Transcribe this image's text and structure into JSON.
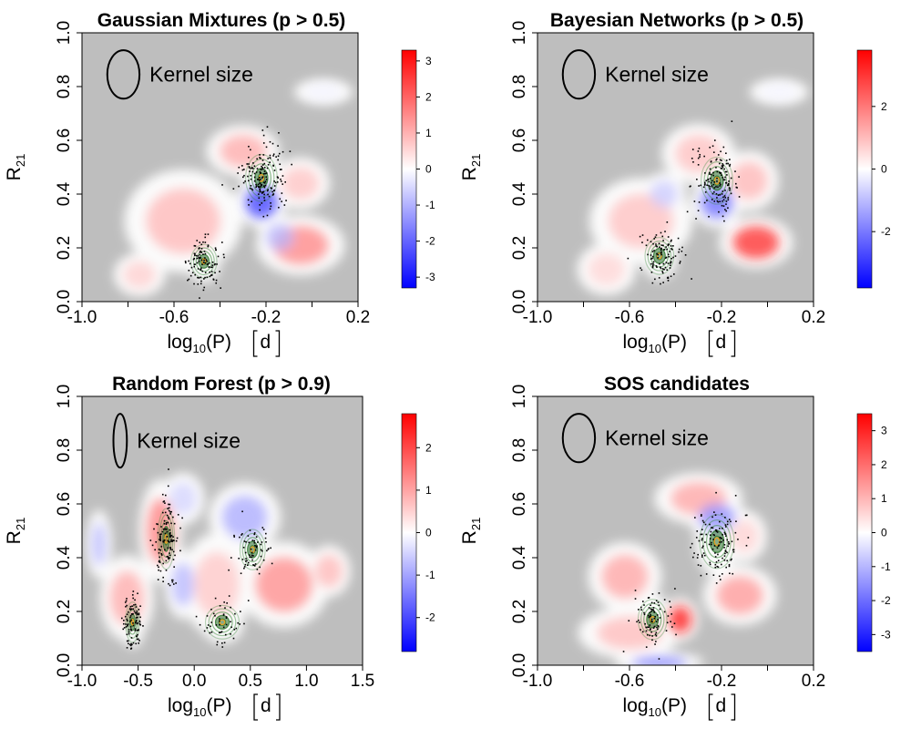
{
  "figure_title": "Density-difference maps in the log10(P) vs R21 plane",
  "chart_data": [
    {
      "type": "heatmap",
      "title": "Gaussian Mixtures (p > 0.5)",
      "xlabel": {
        "main": "log",
        "sub": "10",
        "rest": "(P)",
        "unit": "d"
      },
      "ylabel": {
        "main": "R",
        "sub": "21"
      },
      "xlim": [
        -1.0,
        0.2
      ],
      "ylim": [
        0.0,
        1.0
      ],
      "xticks": [
        -1.0,
        -0.6,
        -0.2,
        0.2
      ],
      "xtick_labels": [
        "-1.0",
        "-0.6",
        "-0.2",
        "0.2"
      ],
      "xminor": [
        -0.8,
        -0.4,
        0.0
      ],
      "yticks": [
        0.0,
        0.2,
        0.4,
        0.6,
        0.8,
        1.0
      ],
      "ytick_labels": [
        "0.0",
        "0.2",
        "0.4",
        "0.6",
        "0.8",
        "1.0"
      ],
      "colorbar_range": [
        -3.3,
        3.3
      ],
      "colorbar_ticks": [
        -3,
        -2,
        -1,
        0,
        1,
        2,
        3
      ],
      "colorbar_tick_labels": [
        "-3",
        "-2",
        "-1",
        "0",
        "1",
        "2",
        "3"
      ],
      "kernel_label": "Kernel size",
      "kernel": {
        "center": [
          -0.82,
          0.845
        ],
        "rx": 0.07,
        "ry": 0.09
      },
      "clusters": [
        {
          "x": -0.22,
          "y": 0.46,
          "sx": 0.055,
          "sy": 0.07,
          "points": 170
        },
        {
          "x": -0.47,
          "y": 0.15,
          "sx": 0.045,
          "sy": 0.05,
          "points": 110
        }
      ],
      "blobs": [
        {
          "x": -0.56,
          "y": 0.3,
          "sx": 0.16,
          "sy": 0.12,
          "v": 0.6
        },
        {
          "x": -0.05,
          "y": 0.21,
          "sx": 0.12,
          "sy": 0.07,
          "v": 1.0
        },
        {
          "x": -0.3,
          "y": 0.56,
          "sx": 0.1,
          "sy": 0.06,
          "v": 0.7
        },
        {
          "x": -0.22,
          "y": 0.37,
          "sx": 0.07,
          "sy": 0.06,
          "v": -1.6
        },
        {
          "x": -0.14,
          "y": 0.24,
          "sx": 0.06,
          "sy": 0.05,
          "v": -0.6
        },
        {
          "x": -0.05,
          "y": 0.44,
          "sx": 0.08,
          "sy": 0.06,
          "v": 0.5
        },
        {
          "x": 0.05,
          "y": 0.78,
          "sx": 0.08,
          "sy": 0.03,
          "v": -0.1
        },
        {
          "x": -0.75,
          "y": 0.1,
          "sx": 0.07,
          "sy": 0.05,
          "v": 0.4
        }
      ]
    },
    {
      "type": "heatmap",
      "title": "Bayesian Networks (p > 0.5)",
      "xlabel": {
        "main": "log",
        "sub": "10",
        "rest": "(P)",
        "unit": "d"
      },
      "ylabel": {
        "main": "R",
        "sub": "21"
      },
      "xlim": [
        -1.0,
        0.2
      ],
      "ylim": [
        0.0,
        1.0
      ],
      "xticks": [
        -1.0,
        -0.6,
        -0.2,
        0.2
      ],
      "xtick_labels": [
        "-1.0",
        "-0.6",
        "-0.2",
        "0.2"
      ],
      "xminor": [
        -0.8,
        -0.4,
        0.0
      ],
      "yticks": [
        0.0,
        0.2,
        0.4,
        0.6,
        0.8,
        1.0
      ],
      "ytick_labels": [
        "0.0",
        "0.2",
        "0.4",
        "0.6",
        "0.8",
        "1.0"
      ],
      "colorbar_range": [
        -3.8,
        3.8
      ],
      "colorbar_ticks": [
        -2,
        0,
        2
      ],
      "colorbar_tick_labels": [
        "-2",
        "0",
        "2"
      ],
      "kernel_label": "Kernel size",
      "kernel": {
        "center": [
          -0.82,
          0.845
        ],
        "rx": 0.07,
        "ry": 0.09
      },
      "clusters": [
        {
          "x": -0.22,
          "y": 0.45,
          "sx": 0.055,
          "sy": 0.07,
          "points": 150
        },
        {
          "x": -0.47,
          "y": 0.17,
          "sx": 0.05,
          "sy": 0.055,
          "points": 110
        }
      ],
      "blobs": [
        {
          "x": -0.05,
          "y": 0.22,
          "sx": 0.1,
          "sy": 0.06,
          "v": 2.0
        },
        {
          "x": -0.55,
          "y": 0.3,
          "sx": 0.14,
          "sy": 0.1,
          "v": 0.6
        },
        {
          "x": -0.3,
          "y": 0.55,
          "sx": 0.1,
          "sy": 0.07,
          "v": 0.6
        },
        {
          "x": -0.22,
          "y": 0.37,
          "sx": 0.07,
          "sy": 0.06,
          "v": -1.4
        },
        {
          "x": -0.08,
          "y": 0.45,
          "sx": 0.08,
          "sy": 0.07,
          "v": 0.7
        },
        {
          "x": -0.45,
          "y": 0.4,
          "sx": 0.06,
          "sy": 0.05,
          "v": -0.5
        },
        {
          "x": -0.7,
          "y": 0.12,
          "sx": 0.08,
          "sy": 0.06,
          "v": 0.4
        },
        {
          "x": 0.05,
          "y": 0.78,
          "sx": 0.08,
          "sy": 0.03,
          "v": -0.1
        }
      ]
    },
    {
      "type": "heatmap",
      "title": "Random Forest (p > 0.9)",
      "xlabel": {
        "main": "log",
        "sub": "10",
        "rest": "(P)",
        "unit": "d"
      },
      "ylabel": {
        "main": "R",
        "sub": "21"
      },
      "xlim": [
        -1.0,
        1.5
      ],
      "ylim": [
        0.0,
        1.0
      ],
      "xticks": [
        -1.0,
        -0.5,
        0.0,
        0.5,
        1.0,
        1.5
      ],
      "xtick_labels": [
        "-1.0",
        "-0.5",
        "0.0",
        "0.5",
        "1.0",
        "1.5"
      ],
      "xminor": [],
      "yticks": [
        0.0,
        0.2,
        0.4,
        0.6,
        0.8,
        1.0
      ],
      "ytick_labels": [
        "0.0",
        "0.2",
        "0.4",
        "0.6",
        "0.8",
        "1.0"
      ],
      "colorbar_range": [
        -2.8,
        2.8
      ],
      "colorbar_ticks": [
        -2,
        -1,
        0,
        1,
        2
      ],
      "colorbar_tick_labels": [
        "-2",
        "-1",
        "0",
        "1",
        "2"
      ],
      "kernel_label": "Kernel size",
      "kernel": {
        "center": [
          -0.66,
          0.835
        ],
        "rx": 0.06,
        "ry": 0.1
      },
      "clusters": [
        {
          "x": -0.25,
          "y": 0.47,
          "sx": 0.06,
          "sy": 0.09,
          "points": 130
        },
        {
          "x": -0.55,
          "y": 0.16,
          "sx": 0.05,
          "sy": 0.06,
          "points": 100
        },
        {
          "x": 0.52,
          "y": 0.43,
          "sx": 0.09,
          "sy": 0.06,
          "points": 70
        },
        {
          "x": 0.25,
          "y": 0.16,
          "sx": 0.12,
          "sy": 0.05,
          "points": 50
        }
      ],
      "blobs": [
        {
          "x": -0.3,
          "y": 0.5,
          "sx": 0.12,
          "sy": 0.12,
          "v": 0.9
        },
        {
          "x": -0.6,
          "y": 0.25,
          "sx": 0.15,
          "sy": 0.1,
          "v": 0.6
        },
        {
          "x": 0.45,
          "y": 0.55,
          "sx": 0.2,
          "sy": 0.08,
          "v": -0.6
        },
        {
          "x": 0.8,
          "y": 0.3,
          "sx": 0.25,
          "sy": 0.1,
          "v": 0.8
        },
        {
          "x": 0.2,
          "y": 0.3,
          "sx": 0.2,
          "sy": 0.12,
          "v": 0.4
        },
        {
          "x": -0.1,
          "y": 0.3,
          "sx": 0.1,
          "sy": 0.08,
          "v": -0.5
        },
        {
          "x": -0.85,
          "y": 0.45,
          "sx": 0.06,
          "sy": 0.08,
          "v": -0.5
        },
        {
          "x": 1.2,
          "y": 0.35,
          "sx": 0.12,
          "sy": 0.06,
          "v": 0.5
        },
        {
          "x": -0.1,
          "y": 0.62,
          "sx": 0.12,
          "sy": 0.06,
          "v": -0.3
        }
      ]
    },
    {
      "type": "heatmap",
      "title": "SOS candidates",
      "xlabel": {
        "main": "log",
        "sub": "10",
        "rest": "(P)",
        "unit": "d"
      },
      "ylabel": {
        "main": "R",
        "sub": "21"
      },
      "xlim": [
        -1.0,
        0.2
      ],
      "ylim": [
        0.0,
        1.0
      ],
      "xticks": [
        -1.0,
        -0.6,
        -0.2,
        0.2
      ],
      "xtick_labels": [
        "-1.0",
        "-0.6",
        "-0.2",
        "0.2"
      ],
      "xminor": [
        -0.8,
        -0.4,
        0.0
      ],
      "yticks": [
        0.0,
        0.2,
        0.4,
        0.6,
        0.8,
        1.0
      ],
      "ytick_labels": [
        "0.0",
        "0.2",
        "0.4",
        "0.6",
        "0.8",
        "1.0"
      ],
      "colorbar_range": [
        -3.5,
        3.5
      ],
      "colorbar_ticks": [
        -3,
        -2,
        -1,
        0,
        1,
        2,
        3
      ],
      "colorbar_tick_labels": [
        "-3",
        "-2",
        "-1",
        "0",
        "1",
        "2",
        "3"
      ],
      "kernel_label": "Kernel size",
      "kernel": {
        "center": [
          -0.82,
          0.845
        ],
        "rx": 0.07,
        "ry": 0.09
      },
      "clusters": [
        {
          "x": -0.22,
          "y": 0.46,
          "sx": 0.06,
          "sy": 0.08,
          "points": 130
        },
        {
          "x": -0.5,
          "y": 0.17,
          "sx": 0.05,
          "sy": 0.06,
          "points": 90
        }
      ],
      "blobs": [
        {
          "x": -0.62,
          "y": 0.33,
          "sx": 0.1,
          "sy": 0.08,
          "v": 0.8
        },
        {
          "x": -0.6,
          "y": 0.12,
          "sx": 0.14,
          "sy": 0.06,
          "v": 0.6
        },
        {
          "x": -0.3,
          "y": 0.62,
          "sx": 0.12,
          "sy": 0.06,
          "v": 0.8
        },
        {
          "x": -0.12,
          "y": 0.26,
          "sx": 0.1,
          "sy": 0.07,
          "v": 0.9
        },
        {
          "x": -0.38,
          "y": 0.17,
          "sx": 0.05,
          "sy": 0.05,
          "v": 2.0
        },
        {
          "x": -0.22,
          "y": 0.55,
          "sx": 0.08,
          "sy": 0.05,
          "v": -1.0
        },
        {
          "x": -0.47,
          "y": 0.01,
          "sx": 0.12,
          "sy": 0.02,
          "v": -1.2
        },
        {
          "x": -0.1,
          "y": 0.48,
          "sx": 0.06,
          "sy": 0.06,
          "v": 0.4
        }
      ]
    }
  ]
}
